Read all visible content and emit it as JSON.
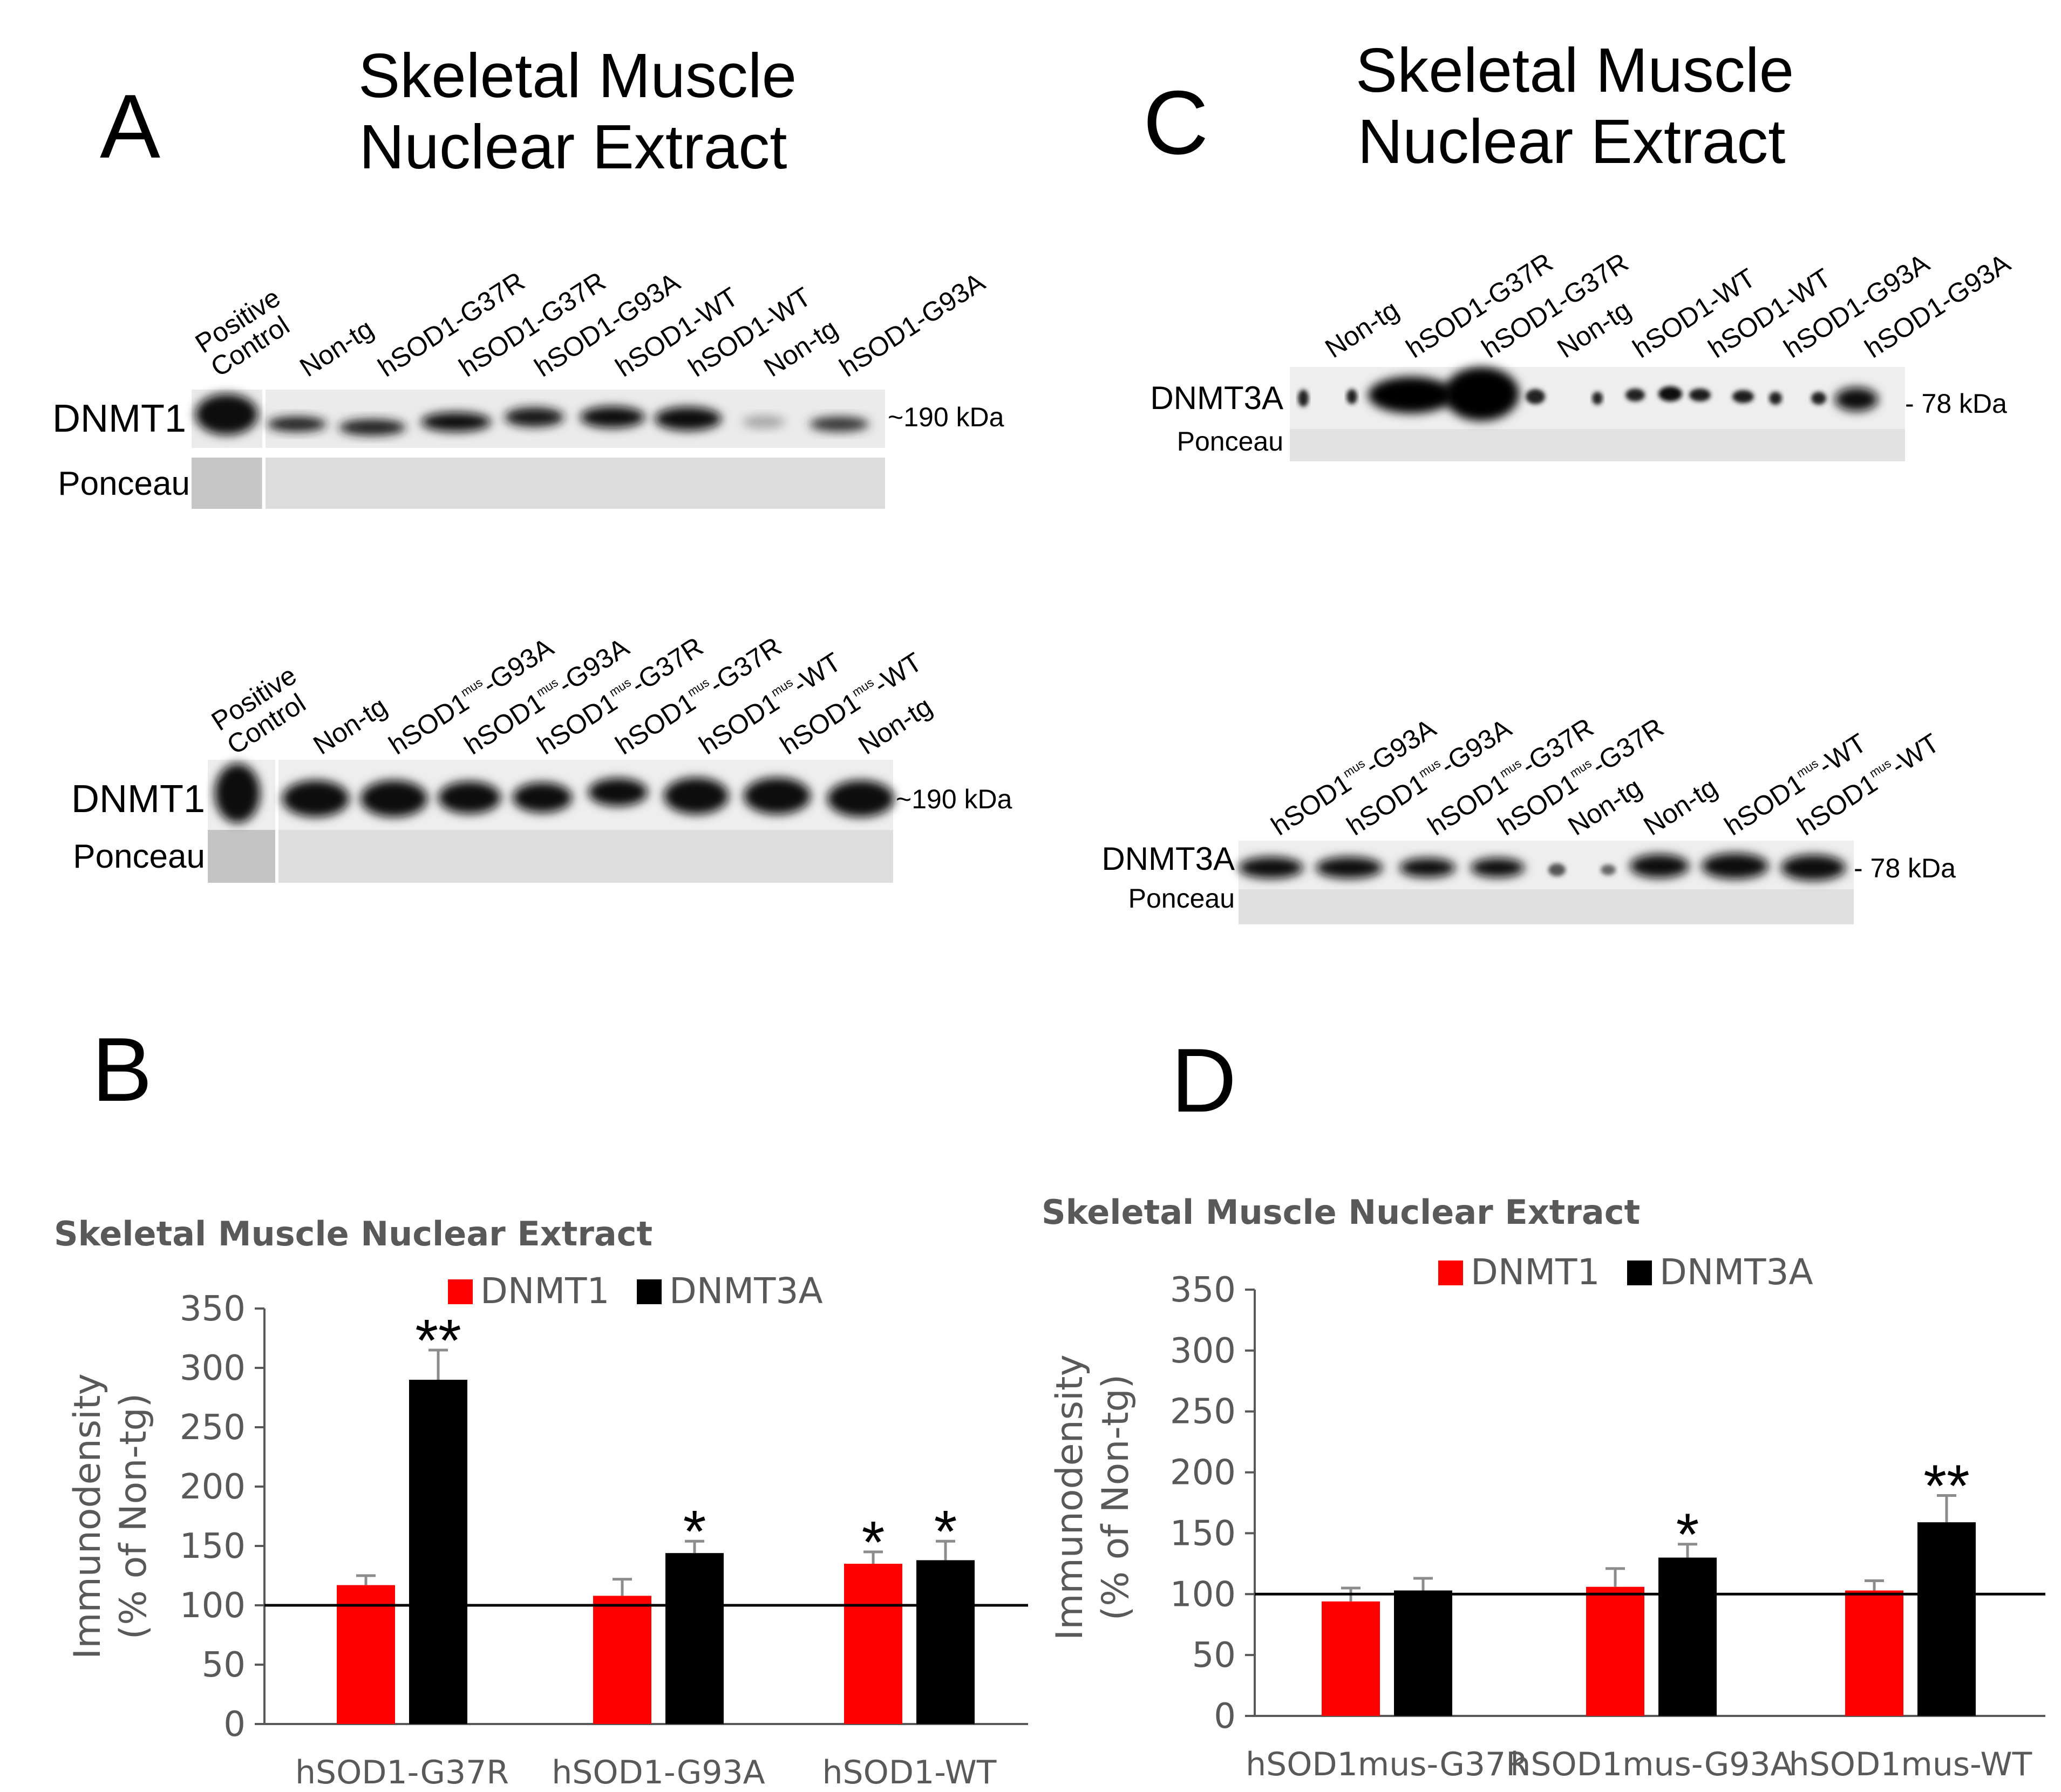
{
  "panels": {
    "A": {
      "letter": "A",
      "title_line1": "Skeletal Muscle",
      "title_line2": "Nuclear Extract",
      "blot_top": {
        "lanes": [
          "Positive Control",
          "Non-tg",
          "hSOD1-G37R",
          "hSOD1-G37R",
          "hSOD1-G93A",
          "hSOD1-WT",
          "hSOD1-WT",
          "Non-tg",
          "hSOD1-G93A"
        ],
        "band_label": "DNMT1",
        "loading_label": "Ponceau",
        "size_marker": "~190 kDa"
      },
      "blot_bottom": {
        "lanes": [
          "Positive Control",
          "Non-tg",
          "hSOD1mus-G93A",
          "hSOD1mus-G93A",
          "hSOD1mus-G37R",
          "hSOD1mus-G37R",
          "hSOD1mus-WT",
          "hSOD1mus-WT",
          "Non-tg"
        ],
        "band_label": "DNMT1",
        "loading_label": "Ponceau",
        "size_marker": "~190 kDa"
      }
    },
    "C": {
      "letter": "C",
      "title_line1": "Skeletal Muscle",
      "title_line2": "Nuclear Extract",
      "blot_top": {
        "lanes": [
          "Non-tg",
          "hSOD1-G37R",
          "hSOD1-G37R",
          "Non-tg",
          "hSOD1-WT",
          "hSOD1-WT",
          "hSOD1-G93A",
          "hSOD1-G93A"
        ],
        "band_label": "DNMT3A",
        "loading_label": "Ponceau",
        "size_marker": "- 78 kDa"
      },
      "blot_bottom": {
        "lanes": [
          "hSOD1mus-G93A",
          "hSOD1mus-G93A",
          "hSOD1mus-G37R",
          "hSOD1mus-G37R",
          "Non-tg",
          "Non-tg",
          "hSOD1mus-WT",
          "hSOD1mus-WT"
        ],
        "band_label": "DNMT3A",
        "loading_label": "Ponceau",
        "size_marker": "- 78 kDa"
      }
    },
    "B": {
      "letter": "B"
    },
    "D": {
      "letter": "D"
    }
  },
  "chart_data": [
    {
      "panel": "B",
      "type": "bar",
      "title": "Skeletal Muscle Nuclear Extract",
      "ylabel_line1": "Immunodensity",
      "ylabel_line2": "(% of Non-tg)",
      "ylim": [
        0,
        350
      ],
      "yticks": [
        0,
        50,
        100,
        150,
        200,
        250,
        300,
        350
      ],
      "reference_line": 100,
      "legend_position": "top",
      "categories": [
        "hSOD1-G37R",
        "hSOD1-G93A",
        "hSOD1-WT"
      ],
      "series": [
        {
          "name": "DNMT1",
          "color": "#ff0000",
          "values": [
            117,
            108,
            135
          ],
          "errors": [
            8,
            14,
            10
          ],
          "significance": [
            "",
            "",
            "*"
          ]
        },
        {
          "name": "DNMT3A",
          "color": "#000000",
          "values": [
            290,
            144,
            138
          ],
          "errors": [
            25,
            10,
            16
          ],
          "significance": [
            "**",
            "*",
            "*"
          ]
        }
      ]
    },
    {
      "panel": "D",
      "type": "bar",
      "title": "Skeletal Muscle Nuclear Extract",
      "ylabel_line1": "Immunodensity",
      "ylabel_line2": "(% of Non-tg)",
      "ylim": [
        0,
        350
      ],
      "yticks": [
        0,
        50,
        100,
        150,
        200,
        250,
        300,
        350
      ],
      "reference_line": 100,
      "legend_position": "top",
      "categories": [
        "hSOD1mus-G37R",
        "hSOD1mus-G93A",
        "hSOD1mus-WT"
      ],
      "series": [
        {
          "name": "DNMT1",
          "color": "#ff0000",
          "values": [
            94,
            106,
            103
          ],
          "errors": [
            11,
            15,
            8
          ],
          "significance": [
            "",
            "",
            ""
          ]
        },
        {
          "name": "DNMT3A",
          "color": "#000000",
          "values": [
            103,
            130,
            159
          ],
          "errors": [
            10,
            11,
            22
          ],
          "significance": [
            "",
            "*",
            "**"
          ]
        }
      ]
    }
  ]
}
